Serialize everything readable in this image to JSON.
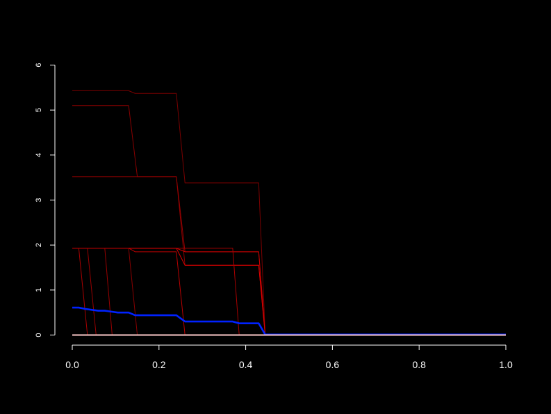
{
  "chart_data": {
    "type": "line",
    "title": "",
    "xlabel": "",
    "ylabel": "",
    "xlim": [
      0,
      1
    ],
    "ylim": [
      0,
      6
    ],
    "x_ticks": [
      "0.0",
      "0.2",
      "0.4",
      "0.6",
      "0.8",
      "1.0"
    ],
    "y_ticks": [
      "0",
      "1",
      "2",
      "3",
      "4",
      "5",
      "6"
    ],
    "grid": false,
    "background": "#000000",
    "axis_color": "#ffffff",
    "series": [
      {
        "color": "#7a0000",
        "points": [
          [
            0,
            5.43
          ],
          [
            0.13,
            5.43
          ],
          [
            0.145,
            5.37
          ],
          [
            0.24,
            5.37
          ],
          [
            0.26,
            3.38
          ],
          [
            0.43,
            3.38
          ],
          [
            0.445,
            0.0
          ],
          [
            1.0,
            0.0
          ]
        ]
      },
      {
        "color": "#8a0000",
        "points": [
          [
            0,
            5.1
          ],
          [
            0.13,
            5.1
          ],
          [
            0.15,
            3.52
          ],
          [
            0.24,
            3.52
          ],
          [
            0.26,
            1.55
          ],
          [
            0.43,
            1.55
          ],
          [
            0.445,
            0.0
          ],
          [
            1.0,
            0.0
          ]
        ]
      },
      {
        "color": "#990000",
        "points": [
          [
            0,
            3.52
          ],
          [
            0.24,
            3.52
          ],
          [
            0.26,
            1.85
          ],
          [
            0.43,
            1.85
          ],
          [
            0.445,
            0.0
          ],
          [
            1.0,
            0.0
          ]
        ]
      },
      {
        "color": "#cc0000",
        "points": [
          [
            0,
            1.93
          ],
          [
            0.24,
            1.93
          ],
          [
            0.26,
            1.85
          ],
          [
            0.43,
            1.85
          ],
          [
            0.445,
            0.0
          ],
          [
            1.0,
            0.0
          ]
        ]
      },
      {
        "color": "#dd0000",
        "points": [
          [
            0,
            1.93
          ],
          [
            0.24,
            1.93
          ],
          [
            0.26,
            1.55
          ],
          [
            0.43,
            1.55
          ],
          [
            0.445,
            0.0
          ],
          [
            1.0,
            0.0
          ]
        ]
      },
      {
        "color": "#bb0000",
        "points": [
          [
            0,
            1.93
          ],
          [
            0.13,
            1.93
          ],
          [
            0.145,
            1.85
          ],
          [
            0.24,
            1.85
          ],
          [
            0.26,
            0.0
          ],
          [
            1.0,
            0.0
          ]
        ]
      },
      {
        "color": "#aa0000",
        "points": [
          [
            0,
            1.93
          ],
          [
            0.37,
            1.93
          ],
          [
            0.385,
            0.0
          ],
          [
            1.0,
            0.0
          ]
        ]
      },
      {
        "color": "#aa0000",
        "points": [
          [
            0,
            1.93
          ],
          [
            0.015,
            1.93
          ],
          [
            0.035,
            0.0
          ],
          [
            1.0,
            0.0
          ]
        ]
      },
      {
        "color": "#990000",
        "points": [
          [
            0,
            1.93
          ],
          [
            0.035,
            1.93
          ],
          [
            0.055,
            0.0
          ],
          [
            1.0,
            0.0
          ]
        ]
      },
      {
        "color": "#990000",
        "points": [
          [
            0,
            1.93
          ],
          [
            0.075,
            1.93
          ],
          [
            0.092,
            0.0
          ],
          [
            1.0,
            0.0
          ]
        ]
      },
      {
        "color": "#880000",
        "points": [
          [
            0,
            1.93
          ],
          [
            0.13,
            1.93
          ],
          [
            0.15,
            0.0
          ],
          [
            1.0,
            0.0
          ]
        ]
      },
      {
        "color": "#0022ff",
        "width": 2.6,
        "points": [
          [
            0,
            0.61
          ],
          [
            0.015,
            0.61
          ],
          [
            0.03,
            0.58
          ],
          [
            0.045,
            0.56
          ],
          [
            0.06,
            0.54
          ],
          [
            0.075,
            0.54
          ],
          [
            0.09,
            0.52
          ],
          [
            0.105,
            0.5
          ],
          [
            0.13,
            0.5
          ],
          [
            0.145,
            0.44
          ],
          [
            0.24,
            0.44
          ],
          [
            0.26,
            0.3
          ],
          [
            0.37,
            0.3
          ],
          [
            0.385,
            0.26
          ],
          [
            0.43,
            0.26
          ],
          [
            0.445,
            0.01
          ],
          [
            1.0,
            0.01
          ]
        ]
      },
      {
        "color": "#ffcccc",
        "width": 2,
        "points": [
          [
            0,
            0.0
          ],
          [
            1.0,
            0.0
          ]
        ]
      }
    ]
  }
}
